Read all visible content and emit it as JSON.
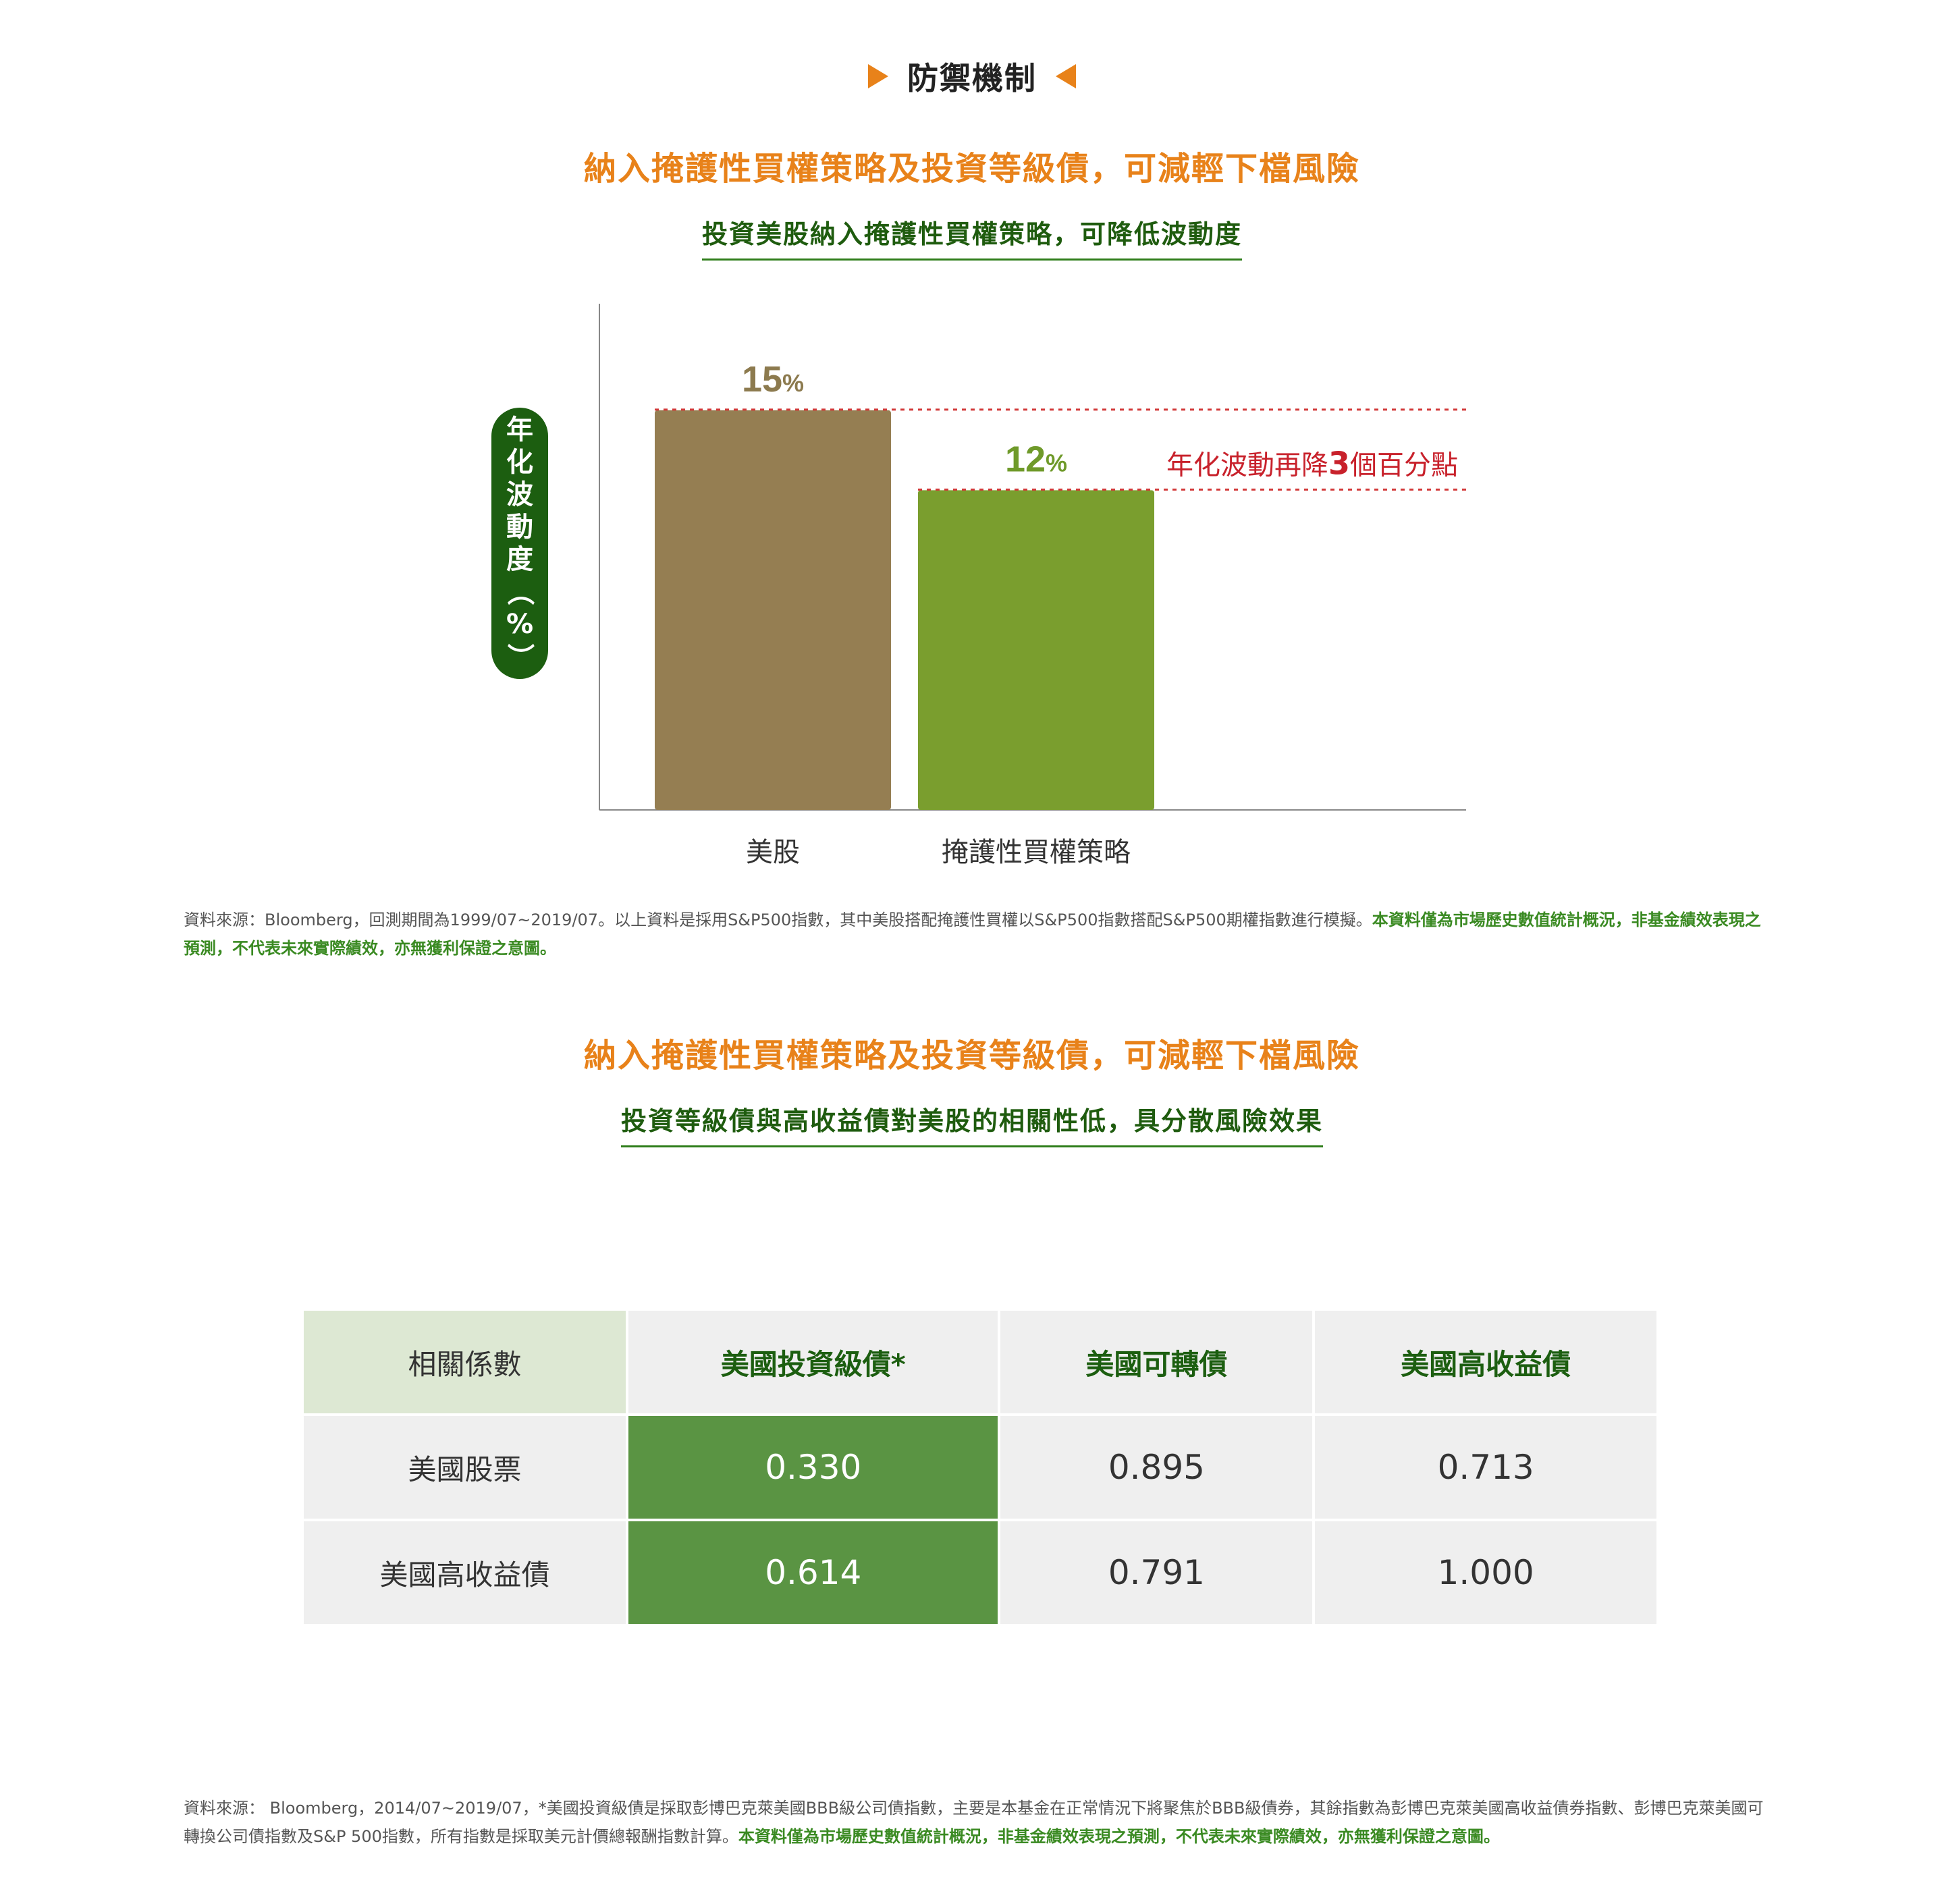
{
  "section": {
    "title": "防禦機制"
  },
  "block1": {
    "heading": "納入掩護性買權策略及投資等級債，可減輕下檔風險",
    "subheading": "投資美股納入掩護性買權策略，可降低波動度",
    "note_plain": "資料來源：Bloomberg，回測期間為1999/07~2019/07。以上資料是採用S&P500指數，其中美股搭配掩護性買權以S&P500指數搭配S&P500期權指數進行模擬。",
    "note_emph": "本資料僅為市場歷史數值統計概況，非基金績效表現之預測，不代表未來實際績效，亦無獲利保證之意圖。"
  },
  "chart_data": {
    "type": "bar",
    "categories": [
      "美股",
      "掩護性買權策略"
    ],
    "values": [
      15,
      12
    ],
    "value_labels": [
      "15",
      "12"
    ],
    "unit": "%",
    "ylabel_chars": [
      "年",
      "化",
      "波",
      "動",
      "度",
      "（",
      "%",
      "）"
    ],
    "ylim": [
      0,
      19
    ],
    "colors": [
      "#957e52",
      "#7a9e2e"
    ],
    "label_colors": [
      "#8c7a4e",
      "#6f9a2a"
    ],
    "annotation": {
      "pre": "年化波動再降",
      "num": "3",
      "post": "個百分點",
      "color": "#c8212b"
    },
    "reference_color": "#d23a3a"
  },
  "block2": {
    "heading": "納入掩護性買權策略及投資等級債，可減輕下檔風險",
    "subheading": "投資等級債與高收益債對美股的相關性低，具分散風險效果",
    "table": {
      "corner": "相關係數",
      "headers": [
        "美國投資級債*",
        "美國可轉債",
        "美國高收益債"
      ],
      "rows": [
        {
          "label": "美國股票",
          "values": [
            "0.330",
            "0.895",
            "0.713"
          ]
        },
        {
          "label": "美國高收益債",
          "values": [
            "0.614",
            "0.791",
            "1.000"
          ]
        }
      ],
      "highlight_color": "#5a9443"
    },
    "note_plain": "資料來源： Bloomberg，2014/07~2019/07，*美國投資級債是採取彭博巴克萊美國BBB級公司債指數，主要是本基金在正常情況下將聚焦於BBB級債券，其餘指數為彭博巴克萊美國高收益債券指數、彭博巴克萊美國可轉換公司債指數及S&P 500指數，所有指數是採取美元計價總報酬指數計算。",
    "note_emph": "本資料僅為市場歷史數值統計概況，非基金績效表現之預測，不代表未來實際績效，亦無獲利保證之意圖。"
  }
}
